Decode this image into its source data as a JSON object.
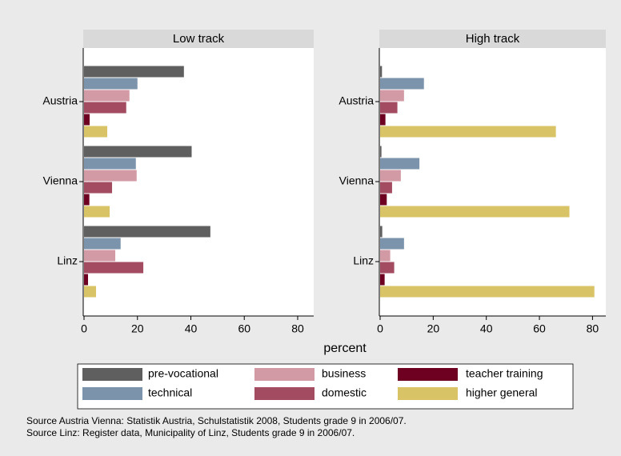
{
  "chart_data": [
    {
      "type": "barh",
      "title": "Low track",
      "categories": [
        "Austria",
        "Vienna",
        "Linz"
      ],
      "xlim": [
        0,
        86
      ],
      "xticks": [
        0,
        20,
        40,
        60,
        80
      ],
      "series": [
        {
          "name": "pre-vocational",
          "color": "#5f5f5f",
          "values": [
            37.4,
            40.3,
            47.3
          ]
        },
        {
          "name": "technical",
          "color": "#7b93ab",
          "values": [
            20,
            19.4,
            13.7
          ]
        },
        {
          "name": "business",
          "color": "#d29aa4",
          "values": [
            17,
            19.7,
            11.7
          ]
        },
        {
          "name": "domestic",
          "color": "#a24b61",
          "values": [
            15.8,
            10.5,
            22.2
          ]
        },
        {
          "name": "teacher training",
          "color": "#6e0022",
          "values": [
            2.1,
            2,
            1.5
          ]
        },
        {
          "name": "higher general",
          "color": "#d8c366",
          "values": [
            8.7,
            9.6,
            4.5
          ]
        }
      ]
    },
    {
      "type": "barh",
      "title": "High track",
      "categories": [
        "Austria",
        "Vienna",
        "Linz"
      ],
      "xlim": [
        0,
        85
      ],
      "xticks": [
        0,
        20,
        40,
        60,
        80
      ],
      "series": [
        {
          "color": "#5f5f5f",
          "values": [
            0.7,
            0.5,
            0.8
          ]
        },
        {
          "color": "#7b93ab",
          "values": [
            16.5,
            14.8,
            9
          ]
        },
        {
          "color": "#d29aa4",
          "values": [
            9,
            7.8,
            3.8
          ]
        },
        {
          "color": "#a24b61",
          "values": [
            6.5,
            4.5,
            5.3
          ]
        },
        {
          "color": "#6e0022",
          "values": [
            2,
            2.5,
            1.7
          ]
        },
        {
          "color": "#d8c366",
          "values": [
            66.2,
            71.3,
            80.7
          ]
        }
      ]
    }
  ],
  "xlabel": "percent",
  "notes": [
    "Source Austria Vienna: Statistik Austria, Schulstatistik 2008, Students grade 9 in 2006/07.",
    "Source Linz: Register data, Municipality of Linz, Students grade 9 in 2006/07."
  ]
}
